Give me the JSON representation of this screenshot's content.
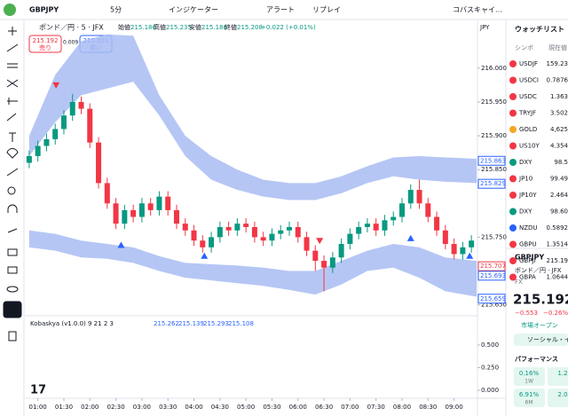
{
  "toolbar": {
    "symbol": "GBPJPY",
    "interval": "5分",
    "indicators": "インジケーター",
    "alert": "アラート",
    "replay": "リプレイ",
    "layout": "コバスキャイ…"
  },
  "header": {
    "instrument": "ポンド／円 · 5 · JFX",
    "open_label": "始値",
    "open": "215.186",
    "high_label": "高値",
    "high": "215.235",
    "low_label": "安値",
    "low": "215.186",
    "close_label": "終値",
    "close": "215.208",
    "change": "+0.022 (+0.01%)",
    "sell_price": "215.192",
    "sell_label": "売り",
    "spread": "0.009",
    "buy_price": "215.201",
    "buy_label": "買い",
    "currency": "JPY"
  },
  "chart_data": {
    "type": "candlestick",
    "up_color": "#089981",
    "down_color": "#f23645",
    "band_color": "#a8bcf3",
    "ylim": [
      215.639,
      216.051
    ],
    "yticks": [
      {
        "value": 216.0,
        "label": "216.000"
      },
      {
        "value": 215.95,
        "label": "215.950"
      },
      {
        "value": 215.9,
        "label": "215.900"
      },
      {
        "value": 215.85,
        "label": "215.850"
      },
      {
        "value": 215.75,
        "label": "215.750"
      },
      {
        "value": 215.65,
        "label": "215.650"
      }
    ],
    "xlim": [
      45,
      567
    ],
    "xticks": [
      {
        "value": 60,
        "label": "01:00"
      },
      {
        "value": 90,
        "label": "01:30"
      },
      {
        "value": 120,
        "label": "02:00"
      },
      {
        "value": 150,
        "label": "02:30"
      },
      {
        "value": 180,
        "label": "03:00"
      },
      {
        "value": 210,
        "label": "03:30"
      },
      {
        "value": 240,
        "label": "04:00"
      },
      {
        "value": 270,
        "label": "04:30"
      },
      {
        "value": 300,
        "label": "05:00"
      },
      {
        "value": 330,
        "label": "05:30"
      },
      {
        "value": 360,
        "label": "06:00"
      },
      {
        "value": 390,
        "label": "06:30"
      },
      {
        "value": 420,
        "label": "07:00"
      },
      {
        "value": 450,
        "label": "07:30"
      },
      {
        "value": 480,
        "label": "08:00"
      },
      {
        "value": 510,
        "label": "08:30"
      },
      {
        "value": 540,
        "label": "09:00"
      }
    ],
    "grid": false,
    "candles": [
      {
        "t": 50,
        "o": 215.86,
        "h": 215.878,
        "l": 215.852,
        "c": 215.87
      },
      {
        "t": 60,
        "o": 215.87,
        "h": 215.893,
        "l": 215.862,
        "c": 215.885
      },
      {
        "t": 70,
        "o": 215.885,
        "h": 215.903,
        "l": 215.877,
        "c": 215.895
      },
      {
        "t": 80,
        "o": 215.895,
        "h": 215.918,
        "l": 215.887,
        "c": 215.91
      },
      {
        "t": 90,
        "o": 215.91,
        "h": 215.938,
        "l": 215.902,
        "c": 215.93
      },
      {
        "t": 100,
        "o": 215.93,
        "h": 215.962,
        "l": 215.922,
        "c": 215.95
      },
      {
        "t": 110,
        "o": 215.95,
        "h": 215.958,
        "l": 215.932,
        "c": 215.94
      },
      {
        "t": 120,
        "o": 215.94,
        "h": 215.948,
        "l": 215.882,
        "c": 215.89
      },
      {
        "t": 130,
        "o": 215.89,
        "h": 215.898,
        "l": 215.822,
        "c": 215.83
      },
      {
        "t": 140,
        "o": 215.83,
        "h": 215.838,
        "l": 215.792,
        "c": 215.8
      },
      {
        "t": 150,
        "o": 215.8,
        "h": 215.808,
        "l": 215.762,
        "c": 215.77
      },
      {
        "t": 160,
        "o": 215.77,
        "h": 215.798,
        "l": 215.762,
        "c": 215.79
      },
      {
        "t": 170,
        "o": 215.79,
        "h": 215.798,
        "l": 215.772,
        "c": 215.78
      },
      {
        "t": 180,
        "o": 215.78,
        "h": 215.808,
        "l": 215.772,
        "c": 215.8
      },
      {
        "t": 190,
        "o": 215.8,
        "h": 215.808,
        "l": 215.782,
        "c": 215.79
      },
      {
        "t": 200,
        "o": 215.79,
        "h": 215.818,
        "l": 215.782,
        "c": 215.81
      },
      {
        "t": 210,
        "o": 215.81,
        "h": 215.818,
        "l": 215.782,
        "c": 215.79
      },
      {
        "t": 220,
        "o": 215.79,
        "h": 215.798,
        "l": 215.762,
        "c": 215.77
      },
      {
        "t": 230,
        "o": 215.77,
        "h": 215.778,
        "l": 215.752,
        "c": 215.76
      },
      {
        "t": 240,
        "o": 215.76,
        "h": 215.768,
        "l": 215.737,
        "c": 215.745
      },
      {
        "t": 250,
        "o": 215.745,
        "h": 215.753,
        "l": 215.727,
        "c": 215.735
      },
      {
        "t": 260,
        "o": 215.735,
        "h": 215.758,
        "l": 215.727,
        "c": 215.75
      },
      {
        "t": 270,
        "o": 215.75,
        "h": 215.773,
        "l": 215.742,
        "c": 215.765
      },
      {
        "t": 280,
        "o": 215.765,
        "h": 215.773,
        "l": 215.752,
        "c": 215.76
      },
      {
        "t": 290,
        "o": 215.76,
        "h": 215.778,
        "l": 215.752,
        "c": 215.77
      },
      {
        "t": 300,
        "o": 215.77,
        "h": 215.778,
        "l": 215.757,
        "c": 215.765
      },
      {
        "t": 310,
        "o": 215.765,
        "h": 215.773,
        "l": 215.742,
        "c": 215.75
      },
      {
        "t": 320,
        "o": 215.75,
        "h": 215.758,
        "l": 215.737,
        "c": 215.745
      },
      {
        "t": 330,
        "o": 215.745,
        "h": 215.763,
        "l": 215.737,
        "c": 215.755
      },
      {
        "t": 340,
        "o": 215.755,
        "h": 215.768,
        "l": 215.747,
        "c": 215.76
      },
      {
        "t": 350,
        "o": 215.76,
        "h": 215.773,
        "l": 215.752,
        "c": 215.765
      },
      {
        "t": 360,
        "o": 215.765,
        "h": 215.773,
        "l": 215.742,
        "c": 215.75
      },
      {
        "t": 370,
        "o": 215.75,
        "h": 215.758,
        "l": 215.722,
        "c": 215.73
      },
      {
        "t": 380,
        "o": 215.73,
        "h": 215.738,
        "l": 215.7,
        "c": 215.715
      },
      {
        "t": 390,
        "o": 215.715,
        "h": 215.723,
        "l": 215.67,
        "c": 215.705
      },
      {
        "t": 400,
        "o": 215.705,
        "h": 215.728,
        "l": 215.697,
        "c": 215.72
      },
      {
        "t": 410,
        "o": 215.72,
        "h": 215.748,
        "l": 215.712,
        "c": 215.74
      },
      {
        "t": 420,
        "o": 215.74,
        "h": 215.763,
        "l": 215.732,
        "c": 215.755
      },
      {
        "t": 430,
        "o": 215.755,
        "h": 215.773,
        "l": 215.747,
        "c": 215.765
      },
      {
        "t": 440,
        "o": 215.765,
        "h": 215.778,
        "l": 215.757,
        "c": 215.77
      },
      {
        "t": 450,
        "o": 215.77,
        "h": 215.778,
        "l": 215.752,
        "c": 215.76
      },
      {
        "t": 460,
        "o": 215.76,
        "h": 215.783,
        "l": 215.752,
        "c": 215.775
      },
      {
        "t": 470,
        "o": 215.775,
        "h": 215.788,
        "l": 215.767,
        "c": 215.78
      },
      {
        "t": 480,
        "o": 215.78,
        "h": 215.808,
        "l": 215.772,
        "c": 215.8
      },
      {
        "t": 490,
        "o": 215.8,
        "h": 215.828,
        "l": 215.792,
        "c": 215.82
      },
      {
        "t": 500,
        "o": 215.82,
        "h": 215.835,
        "l": 215.792,
        "c": 215.8
      },
      {
        "t": 510,
        "o": 215.8,
        "h": 215.808,
        "l": 215.772,
        "c": 215.78
      },
      {
        "t": 520,
        "o": 215.78,
        "h": 215.788,
        "l": 215.752,
        "c": 215.76
      },
      {
        "t": 530,
        "o": 215.76,
        "h": 215.768,
        "l": 215.732,
        "c": 215.74
      },
      {
        "t": 540,
        "o": 215.74,
        "h": 215.748,
        "l": 215.717,
        "c": 215.725
      },
      {
        "t": 550,
        "o": 215.725,
        "h": 215.743,
        "l": 215.717,
        "c": 215.735
      },
      {
        "t": 560,
        "o": 215.735,
        "h": 215.753,
        "l": 215.727,
        "c": 215.745
      }
    ],
    "bands": {
      "t": [
        50,
        80,
        110,
        140,
        170,
        200,
        230,
        260,
        290,
        320,
        350,
        380,
        410,
        440,
        470,
        500,
        530,
        566
      ],
      "upper_top": [
        215.9,
        215.99,
        216.04,
        216.05,
        216.048,
        215.96,
        215.9,
        215.87,
        215.85,
        215.835,
        215.83,
        215.83,
        215.84,
        215.855,
        215.868,
        215.87,
        215.868,
        215.866
      ],
      "upper_bottom": [
        215.87,
        215.92,
        215.96,
        215.97,
        215.98,
        215.93,
        215.87,
        215.835,
        215.82,
        215.81,
        215.805,
        215.805,
        215.815,
        215.83,
        215.84,
        215.835,
        215.832,
        215.83
      ],
      "lower_top": [
        215.76,
        215.755,
        215.745,
        215.74,
        215.735,
        215.722,
        215.712,
        215.71,
        215.708,
        215.705,
        215.7,
        215.7,
        215.715,
        215.73,
        215.74,
        215.735,
        215.72,
        215.715
      ],
      "lower_bottom": [
        215.735,
        215.73,
        215.72,
        215.718,
        215.712,
        215.7,
        215.69,
        215.686,
        215.682,
        215.678,
        215.672,
        215.665,
        215.68,
        215.7,
        215.705,
        215.69,
        215.67,
        215.662
      ]
    },
    "signals": [
      {
        "t": 81,
        "price": 215.975,
        "kind": "down",
        "color": "#f23645"
      },
      {
        "t": 156,
        "price": 215.738,
        "kind": "up",
        "color": "#2962ff"
      },
      {
        "t": 252,
        "price": 215.722,
        "kind": "up",
        "color": "#2962ff"
      },
      {
        "t": 385,
        "price": 215.745,
        "kind": "down",
        "color": "#f23645"
      },
      {
        "t": 490,
        "price": 215.748,
        "kind": "up",
        "color": "#2962ff"
      },
      {
        "t": 558,
        "price": 215.722,
        "kind": "up",
        "color": "#2962ff"
      }
    ],
    "price_labels": [
      {
        "value": 215.863,
        "color": "#2962ff"
      },
      {
        "value": 215.829,
        "color": "#2962ff"
      },
      {
        "value": 215.707,
        "color": "#f23645"
      },
      {
        "value": 215.693,
        "color": "#2962ff"
      },
      {
        "value": 215.659,
        "color": "#2962ff"
      }
    ]
  },
  "indicator": {
    "name": "Kobaskya (v1.0.0) 9 21 2 3",
    "values": [
      "215.262",
      "215.139",
      "215.293",
      "215.108"
    ],
    "ylim": [
      -0.078,
      0.627
    ],
    "yticks": [
      {
        "value": 0.5,
        "label": "0.500"
      },
      {
        "value": 0.25,
        "label": "0.250"
      },
      {
        "value": 0.0,
        "label": "0.000"
      }
    ]
  },
  "watchlist": {
    "title": "ウォッチリスト",
    "col_symbol": "シンボ",
    "col_price": "現在値",
    "rows": [
      {
        "symbol": "USDJF",
        "price": "159.23",
        "icon": "#f23645"
      },
      {
        "symbol": "USDCI",
        "price": "0.7876",
        "icon": "#f23645"
      },
      {
        "symbol": "USDC",
        "price": "1.363",
        "icon": "#f23645"
      },
      {
        "symbol": "TRYJF",
        "price": "3.502",
        "icon": "#f23645"
      },
      {
        "symbol": "GOLD",
        "price": "4,625",
        "icon": "#f5a623"
      },
      {
        "symbol": "US10Y",
        "price": "4.354",
        "icon": "#f23645"
      },
      {
        "symbol": "DXY",
        "price": "98.5",
        "icon": "#089981"
      },
      {
        "symbol": "JP10",
        "price": "99.49",
        "icon": "#f23645"
      },
      {
        "symbol": "JP10Y",
        "price": "2.464",
        "icon": "#f23645"
      },
      {
        "symbol": "DXY",
        "price": "98.60",
        "icon": "#089981"
      },
      {
        "symbol": "NZDU",
        "price": "0.5892",
        "icon": "#2962ff"
      },
      {
        "symbol": "GBPU",
        "price": "1.3514",
        "icon": "#f23645"
      },
      {
        "symbol": "GBPJI",
        "price": "215.19",
        "icon": "#f23645"
      },
      {
        "symbol": "GBPA",
        "price": "1.0644",
        "icon": "#f23645"
      }
    ]
  },
  "detail": {
    "symbol": "GBPJPY",
    "name": "ポンド／円 · JFX",
    "market": "FX",
    "price": "215.192",
    "change": "−0.553",
    "change_pct": "−0.26%",
    "status": "市場オープン",
    "social": "ソーシャル・イ",
    "performance": "パフォーマンス",
    "perf": [
      {
        "value": "0.16%",
        "period": "1W"
      },
      {
        "value": "1.2",
        "period": ""
      },
      {
        "value": "6.91%",
        "period": "6M"
      },
      {
        "value": "2.0",
        "period": ""
      }
    ]
  }
}
